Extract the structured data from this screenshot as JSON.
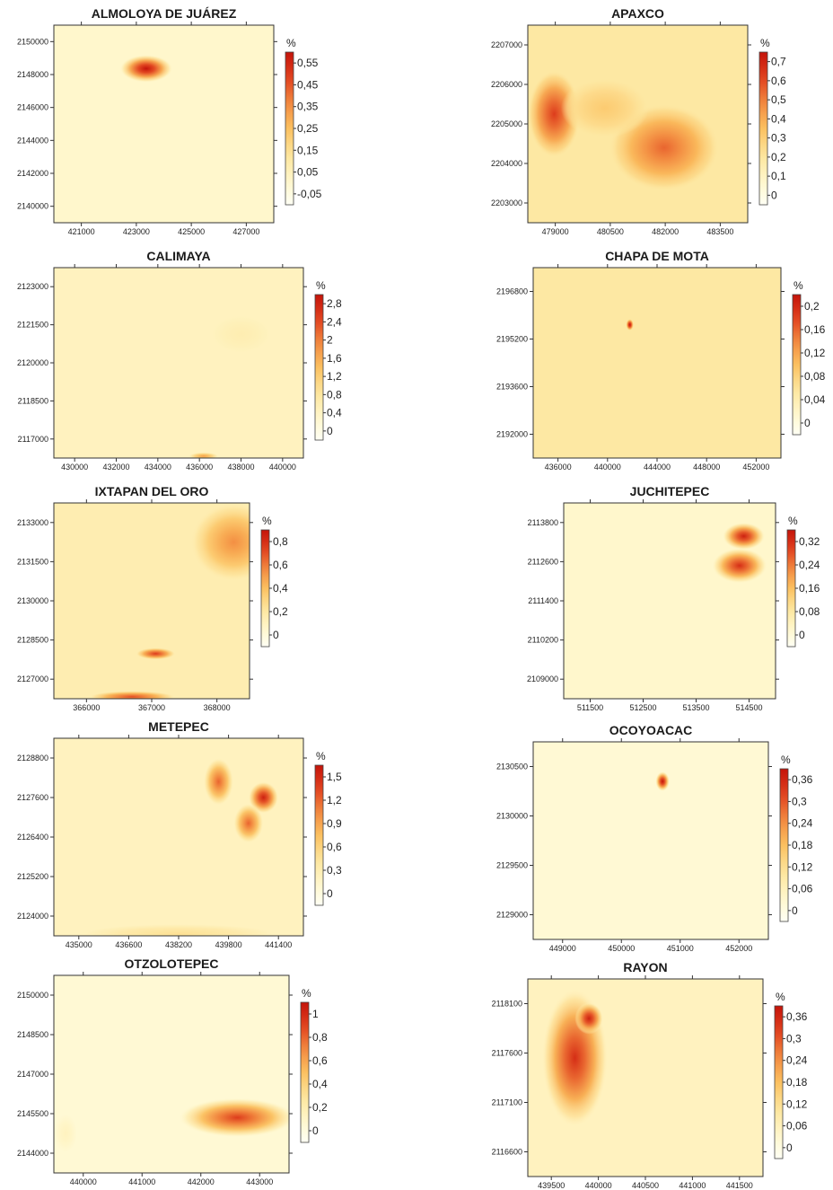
{
  "colors": {
    "ramp": [
      "#fffff4",
      "#fff6c8",
      "#fde49a",
      "#fbc060",
      "#f28a40",
      "#e0401e",
      "#c4140a"
    ],
    "frame": "#333333",
    "background": "#ffffff"
  },
  "chart_data": [
    {
      "type": "heatmap",
      "title": "ALMOLOYA DE JUÁREZ",
      "x_ticks": [
        "421000",
        "423000",
        "425000",
        "427000"
      ],
      "y_ticks": [
        "2150000",
        "2148000",
        "2146000",
        "2144000",
        "2142000",
        "2140000"
      ],
      "colorbar": {
        "unit": "%",
        "ticks": [
          "0,55",
          "0,45",
          "0,35",
          "0,25",
          "0,15",
          "0,05",
          "-0,05"
        ]
      },
      "hotspots": [
        {
          "x": 0.42,
          "y": 0.22,
          "rx": 0.12,
          "ry": 0.07,
          "value": 1.0
        }
      ],
      "base_level": 0.15
    },
    {
      "type": "heatmap",
      "title": "APAXCO",
      "x_ticks": [
        "479000",
        "480500",
        "482000",
        "483500"
      ],
      "y_ticks": [
        "2207000",
        "2206000",
        "2205000",
        "2204000",
        "2203000"
      ],
      "colorbar": {
        "unit": "%",
        "ticks": [
          "0,7",
          "0,6",
          "0,5",
          "0,4",
          "0,3",
          "0,2",
          "0,1",
          "0"
        ]
      },
      "hotspots": [
        {
          "x": 0.62,
          "y": 0.62,
          "rx": 0.25,
          "ry": 0.22,
          "value": 0.75
        },
        {
          "x": 0.12,
          "y": 0.45,
          "rx": 0.12,
          "ry": 0.22,
          "value": 0.85
        },
        {
          "x": 0.35,
          "y": 0.42,
          "rx": 0.2,
          "ry": 0.15,
          "value": 0.45
        }
      ],
      "base_level": 0.3
    },
    {
      "type": "heatmap",
      "title": "CALIMAYA",
      "x_ticks": [
        "430000",
        "432000",
        "434000",
        "436000",
        "438000",
        "440000"
      ],
      "y_ticks": [
        "2123000",
        "2121500",
        "2120000",
        "2118500",
        "2117000"
      ],
      "colorbar": {
        "unit": "%",
        "ticks": [
          "2,8",
          "2,4",
          "2",
          "1,6",
          "1,2",
          "0,8",
          "0,4",
          "0"
        ]
      },
      "hotspots": [
        {
          "x": 0.6,
          "y": 0.99,
          "rx": 0.06,
          "ry": 0.02,
          "value": 0.6
        },
        {
          "x": 0.75,
          "y": 0.35,
          "rx": 0.12,
          "ry": 0.1,
          "value": 0.25
        }
      ],
      "base_level": 0.2
    },
    {
      "type": "heatmap",
      "title": "CHAPA DE MOTA",
      "x_ticks": [
        "436000",
        "440000",
        "444000",
        "448000",
        "452000"
      ],
      "y_ticks": [
        "2196800",
        "2195200",
        "2193600",
        "2192000"
      ],
      "colorbar": {
        "unit": "%",
        "ticks": [
          "0,2",
          "0,16",
          "0,12",
          "0,08",
          "0,04",
          "0"
        ]
      },
      "hotspots": [
        {
          "x": 0.39,
          "y": 0.3,
          "rx": 0.015,
          "ry": 0.03,
          "value": 1.0
        }
      ],
      "base_level": 0.3
    },
    {
      "type": "heatmap",
      "title": "IXTAPAN DEL ORO",
      "x_ticks": [
        "366000",
        "367000",
        "368000"
      ],
      "y_ticks": [
        "2133000",
        "2131500",
        "2130000",
        "2128500",
        "2127000"
      ],
      "colorbar": {
        "unit": "%",
        "ticks": [
          "0,8",
          "0,6",
          "0,4",
          "0,2",
          "0"
        ]
      },
      "hotspots": [
        {
          "x": 0.92,
          "y": 0.2,
          "rx": 0.22,
          "ry": 0.2,
          "value": 0.65
        },
        {
          "x": 0.52,
          "y": 0.77,
          "rx": 0.1,
          "ry": 0.03,
          "value": 0.85
        },
        {
          "x": 0.4,
          "y": 0.99,
          "rx": 0.22,
          "ry": 0.03,
          "value": 0.8
        }
      ],
      "base_level": 0.25
    },
    {
      "type": "heatmap",
      "title": "JUCHITEPEC",
      "x_ticks": [
        "511500",
        "512500",
        "513500",
        "514500"
      ],
      "y_ticks": [
        "2113800",
        "2112600",
        "2111400",
        "2110200",
        "2109000"
      ],
      "colorbar": {
        "unit": "%",
        "ticks": [
          "0,32",
          "0,24",
          "0,16",
          "0,08",
          "0"
        ]
      },
      "hotspots": [
        {
          "x": 0.85,
          "y": 0.17,
          "rx": 0.1,
          "ry": 0.07,
          "value": 0.95
        },
        {
          "x": 0.83,
          "y": 0.32,
          "rx": 0.13,
          "ry": 0.09,
          "value": 0.9
        }
      ],
      "base_level": 0.15
    },
    {
      "type": "heatmap",
      "title": "METEPEC",
      "x_ticks": [
        "435000",
        "436600",
        "438200",
        "439800",
        "441400"
      ],
      "y_ticks": [
        "2128800",
        "2127600",
        "2126400",
        "2125200",
        "2124000"
      ],
      "colorbar": {
        "unit": "%",
        "ticks": [
          "1,5",
          "1,2",
          "0,9",
          "0,6",
          "0,3",
          "0"
        ]
      },
      "hotspots": [
        {
          "x": 0.66,
          "y": 0.22,
          "rx": 0.06,
          "ry": 0.12,
          "value": 0.75
        },
        {
          "x": 0.84,
          "y": 0.3,
          "rx": 0.06,
          "ry": 0.08,
          "value": 0.95
        },
        {
          "x": 0.78,
          "y": 0.43,
          "rx": 0.06,
          "ry": 0.1,
          "value": 0.75
        },
        {
          "x": 0.5,
          "y": 0.99,
          "rx": 0.4,
          "ry": 0.05,
          "value": 0.35
        }
      ],
      "base_level": 0.2
    },
    {
      "type": "heatmap",
      "title": "OCOYOACAC",
      "x_ticks": [
        "449000",
        "450000",
        "451000",
        "452000"
      ],
      "y_ticks": [
        "2130500",
        "2130000",
        "2129500",
        "2129000"
      ],
      "colorbar": {
        "unit": "%",
        "ticks": [
          "0,36",
          "0,3",
          "0,24",
          "0,18",
          "0,12",
          "0,06",
          "0"
        ]
      },
      "hotspots": [
        {
          "x": 0.55,
          "y": 0.2,
          "rx": 0.03,
          "ry": 0.05,
          "value": 1.0
        }
      ],
      "base_level": 0.12
    },
    {
      "type": "heatmap",
      "title": "OTZOLOTEPEC",
      "x_ticks": [
        "440000",
        "441000",
        "442000",
        "443000"
      ],
      "y_ticks": [
        "2150000",
        "2148500",
        "2147000",
        "2145500",
        "2144000"
      ],
      "colorbar": {
        "unit": "%",
        "ticks": [
          "1",
          "0,8",
          "0,6",
          "0,4",
          "0,2",
          "0"
        ]
      },
      "hotspots": [
        {
          "x": 0.78,
          "y": 0.72,
          "rx": 0.25,
          "ry": 0.1,
          "value": 0.85
        },
        {
          "x": 0.05,
          "y": 0.8,
          "rx": 0.05,
          "ry": 0.1,
          "value": 0.2
        }
      ],
      "base_level": 0.12
    },
    {
      "type": "heatmap",
      "title": "RAYON",
      "x_ticks": [
        "439500",
        "440000",
        "440500",
        "441000",
        "441500"
      ],
      "y_ticks": [
        "2118100",
        "2117600",
        "2117100",
        "2116600"
      ],
      "colorbar": {
        "unit": "%",
        "ticks": [
          "0,36",
          "0,3",
          "0,24",
          "0,18",
          "0,12",
          "0,06",
          "0"
        ]
      },
      "hotspots": [
        {
          "x": 0.2,
          "y": 0.4,
          "rx": 0.14,
          "ry": 0.35,
          "value": 0.9
        },
        {
          "x": 0.26,
          "y": 0.2,
          "rx": 0.06,
          "ry": 0.08,
          "value": 0.95
        }
      ],
      "base_level": 0.2
    }
  ]
}
